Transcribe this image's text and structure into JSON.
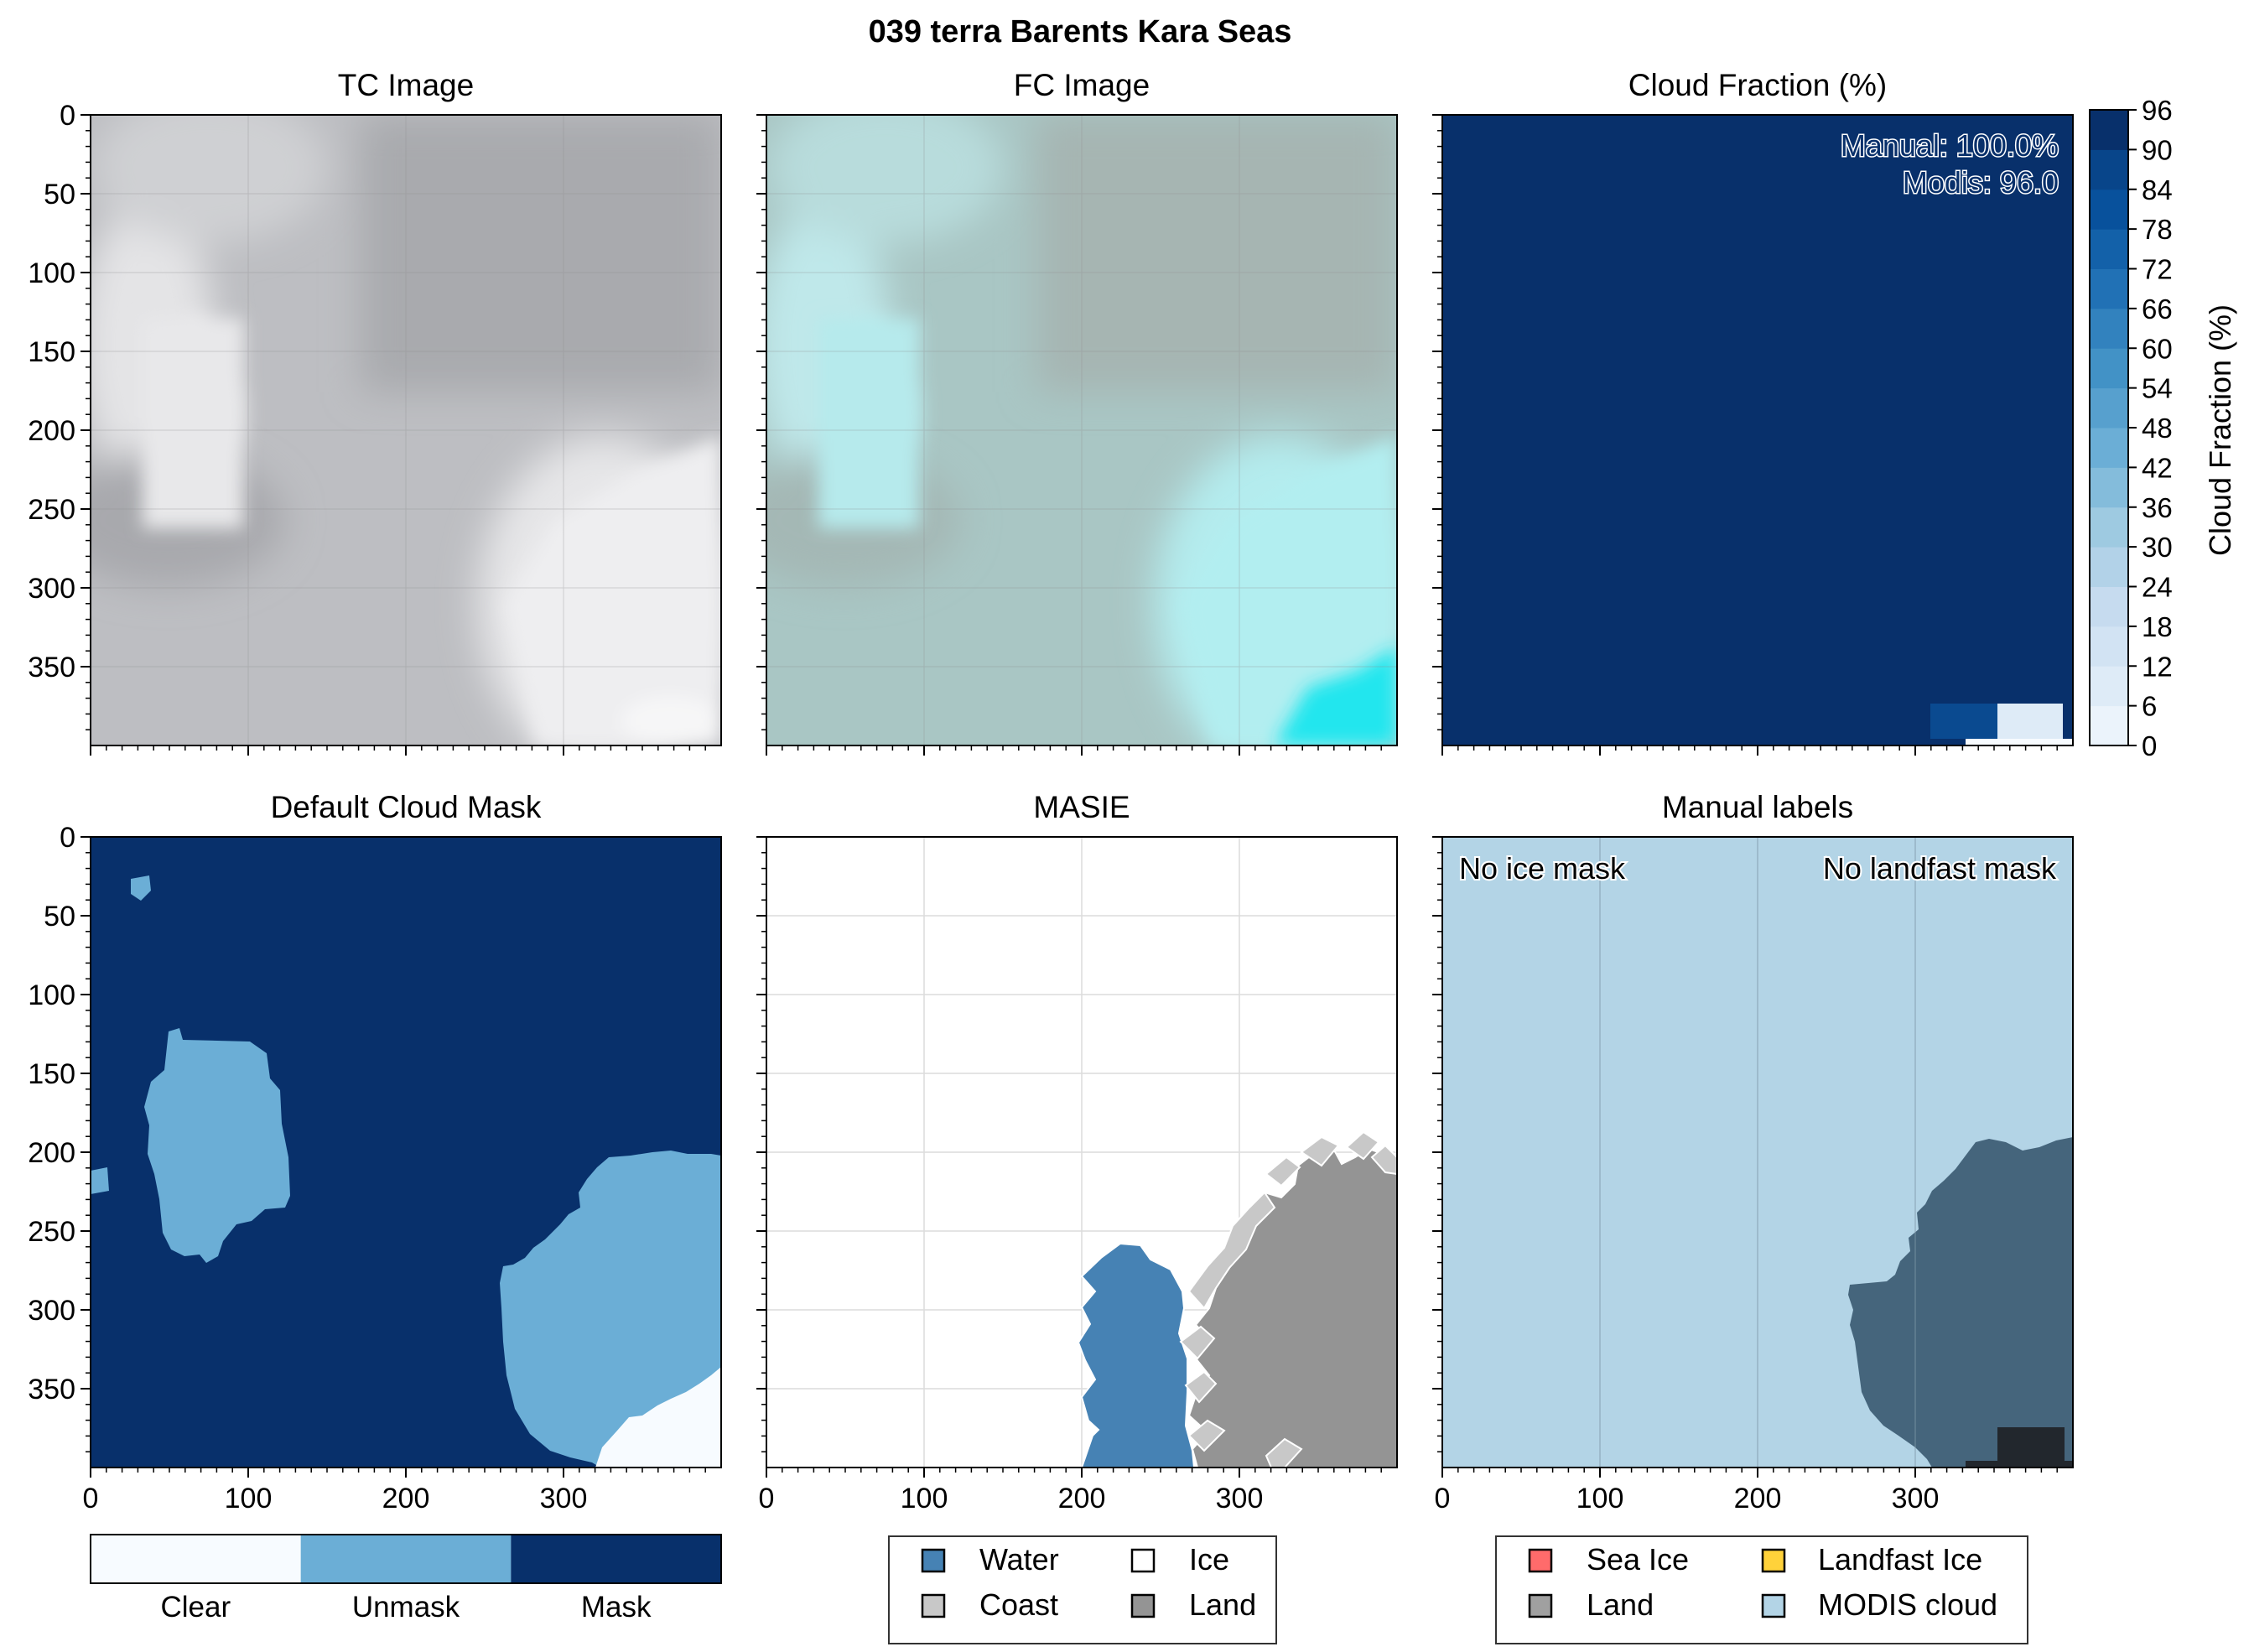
{
  "figure": {
    "title": "039 terra Barents Kara Seas"
  },
  "colors": {
    "mask_clear": "#f7fbff",
    "mask_unmask": "#6baed6",
    "mask_mask": "#08306b",
    "masie_water": "#4682b4",
    "masie_coast": "#c8c8c8",
    "masie_ice": "#ffffff",
    "masie_land": "#949494",
    "label_sea_ice": "#ff6b6b",
    "label_land": "#a0a0a0",
    "label_landfast": "#ffd23a",
    "label_modis_cloud": "#b3d4e6",
    "label_land_under_cloud": "#45657c"
  },
  "chart_data": [
    {
      "id": "tc",
      "type": "heatmap",
      "title": "TC Image",
      "xlim": [
        0,
        400
      ],
      "ylim": [
        400,
        0
      ],
      "yticks": [
        0,
        50,
        100,
        150,
        200,
        250,
        300,
        350
      ],
      "xticks": [],
      "grid": true
    },
    {
      "id": "fc",
      "type": "heatmap",
      "title": "FC Image",
      "xlim": [
        0,
        400
      ],
      "ylim": [
        400,
        0
      ],
      "grid": true
    },
    {
      "id": "cloudfrac",
      "type": "heatmap",
      "title": "Cloud Fraction (%)",
      "colorbar_label": "Cloud Fraction (%)",
      "colorbar_ticks": [
        0,
        6,
        12,
        18,
        24,
        30,
        36,
        42,
        48,
        54,
        60,
        66,
        72,
        78,
        84,
        90,
        96
      ],
      "vmin": 0,
      "vmax": 96,
      "annotation_manual": "Manual: 100.0%",
      "annotation_modis": "Modis: 96.0",
      "xlim": [
        0,
        400
      ],
      "ylim": [
        400,
        0
      ]
    },
    {
      "id": "cloudmask",
      "type": "heatmap",
      "title": "Default Cloud Mask",
      "xticks": [
        0,
        100,
        200,
        300
      ],
      "yticks": [
        0,
        50,
        100,
        150,
        200,
        250,
        300,
        350
      ],
      "colorbar_categories": [
        "Clear",
        "Unmask",
        "Mask"
      ],
      "xlim": [
        0,
        400
      ],
      "ylim": [
        400,
        0
      ]
    },
    {
      "id": "masie",
      "type": "heatmap",
      "title": "MASIE",
      "xticks": [
        0,
        100,
        200,
        300
      ],
      "legend": [
        "Water",
        "Ice",
        "Coast",
        "Land"
      ],
      "legend_location": "bottom",
      "xlim": [
        0,
        400
      ],
      "ylim": [
        400,
        0
      ]
    },
    {
      "id": "manual",
      "type": "heatmap",
      "title": "Manual labels",
      "xticks": [
        0,
        100,
        200,
        300
      ],
      "annotation_left": "No ice mask",
      "annotation_right": "No landfast mask",
      "legend": [
        "Sea Ice",
        "Landfast Ice",
        "Land",
        "MODIS cloud"
      ],
      "legend_location": "bottom",
      "xlim": [
        0,
        400
      ],
      "ylim": [
        400,
        0
      ]
    }
  ]
}
